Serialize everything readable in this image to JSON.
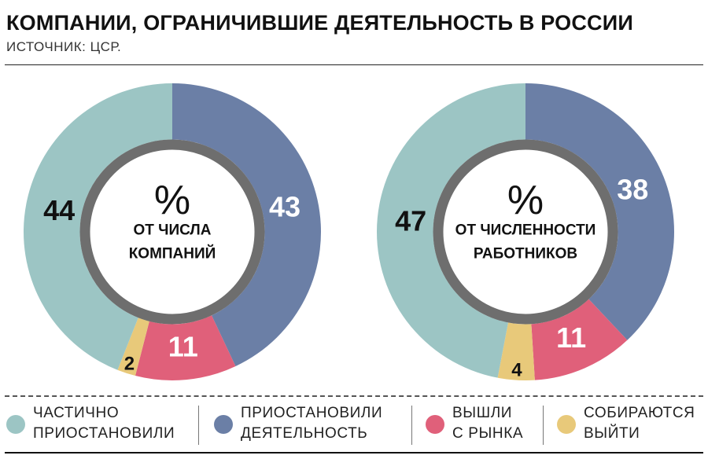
{
  "title": "КОМПАНИИ, ОГРАНИЧИВШИЕ ДЕЯТЕЛЬНОСТЬ В РОССИИ",
  "source": "ИСТОЧНИК: ЦСР.",
  "colors": {
    "partially_suspended": "#9cc5c4",
    "suspended": "#6b7fa6",
    "exited": "#e0607a",
    "planning_to_exit": "#e8c97a",
    "center_ring": "#6e6e6e"
  },
  "legend": [
    {
      "key": "partially_suspended",
      "line1": "ЧАСТИЧНО",
      "line2": "ПРИОСТАНОВИЛИ"
    },
    {
      "key": "suspended",
      "line1": "ПРИОСТАНОВИЛИ",
      "line2": "ДЕЯТЕЛЬНОСТЬ"
    },
    {
      "key": "exited",
      "line1": "ВЫШЛИ",
      "line2": "С РЫНКА"
    },
    {
      "key": "planning_to_exit",
      "line1": "СОБИРАЮТСЯ",
      "line2": "ВЫЙТИ"
    }
  ],
  "chart_data": [
    {
      "type": "pie",
      "center_symbol": "%",
      "center_line1": "ОТ ЧИСЛА",
      "center_line2": "КОМПАНИЙ",
      "slices": [
        {
          "key": "suspended",
          "value": 43,
          "label": "43"
        },
        {
          "key": "exited",
          "value": 11,
          "label": "11"
        },
        {
          "key": "planning_to_exit",
          "value": 2,
          "label": "2"
        },
        {
          "key": "partially_suspended",
          "value": 44,
          "label": "44"
        }
      ]
    },
    {
      "type": "pie",
      "center_symbol": "%",
      "center_line1": "ОТ ЧИСЛЕННОСТИ",
      "center_line2": "РАБОТНИКОВ",
      "slices": [
        {
          "key": "suspended",
          "value": 38,
          "label": "38"
        },
        {
          "key": "exited",
          "value": 11,
          "label": "11"
        },
        {
          "key": "planning_to_exit",
          "value": 4,
          "label": "4"
        },
        {
          "key": "partially_suspended",
          "value": 47,
          "label": "47"
        }
      ]
    }
  ]
}
